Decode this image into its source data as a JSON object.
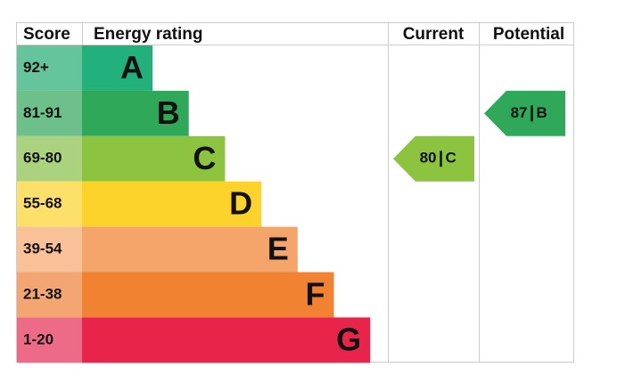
{
  "headers": {
    "score": "Score",
    "rating": "Energy rating",
    "current": "Current",
    "potential": "Potential"
  },
  "bands": [
    {
      "score": "92+",
      "letter": "A",
      "color": "#22b07d",
      "score_color": "#64c49b"
    },
    {
      "score": "81-91",
      "letter": "B",
      "color": "#2fa85a",
      "score_color": "#6ec08a"
    },
    {
      "score": "69-80",
      "letter": "C",
      "color": "#8cc43f",
      "score_color": "#abd27f"
    },
    {
      "score": "55-68",
      "letter": "D",
      "color": "#fdd22a",
      "score_color": "#fde06a"
    },
    {
      "score": "39-54",
      "letter": "E",
      "color": "#f5a46a",
      "score_color": "#f8c197"
    },
    {
      "score": "21-38",
      "letter": "F",
      "color": "#f08232",
      "score_color": "#f3a671"
    },
    {
      "score": "1-20",
      "letter": "G",
      "color": "#e8244a",
      "score_color": "#ee6b88"
    }
  ],
  "current": {
    "score": "80",
    "rating": "C"
  },
  "potential": {
    "score": "87",
    "rating": "B"
  }
}
